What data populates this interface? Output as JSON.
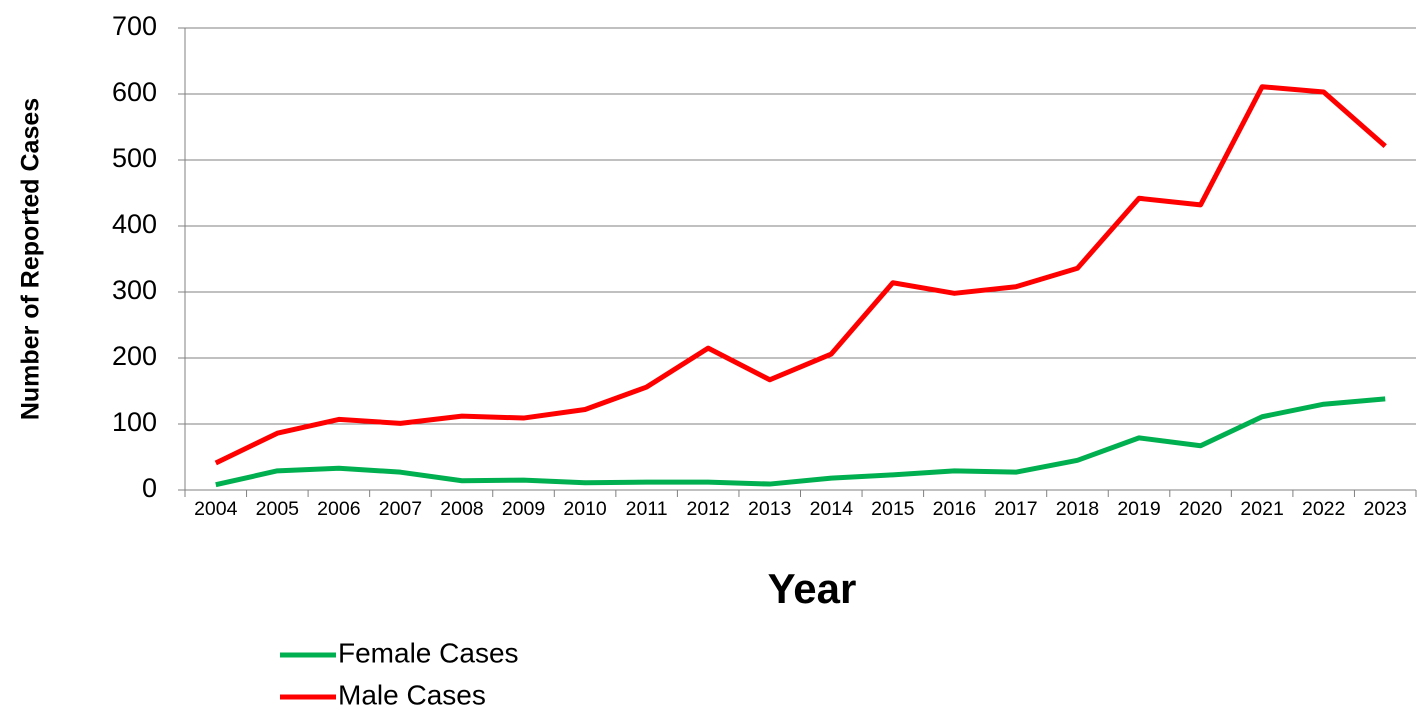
{
  "chart_data": {
    "type": "line",
    "x_label": "Year",
    "y_label": "Number of Reported Cases",
    "categories": [
      "2004",
      "2005",
      "2006",
      "2007",
      "2008",
      "2009",
      "2010",
      "2011",
      "2012",
      "2013",
      "2014",
      "2015",
      "2016",
      "2017",
      "2018",
      "2019",
      "2020",
      "2021",
      "2022",
      "2023"
    ],
    "series": [
      {
        "name": "Female Cases",
        "color": "#00b050",
        "values": [
          8,
          29,
          33,
          27,
          14,
          15,
          11,
          12,
          12,
          9,
          18,
          23,
          29,
          27,
          45,
          79,
          67,
          111,
          130,
          138
        ]
      },
      {
        "name": "Male Cases",
        "color": "#ff0000",
        "values": [
          41,
          86,
          107,
          101,
          112,
          109,
          122,
          156,
          215,
          167,
          206,
          314,
          298,
          308,
          336,
          442,
          432,
          611,
          603,
          521
        ]
      }
    ],
    "ylim": [
      0,
      700
    ],
    "yticks": [
      0,
      100,
      200,
      300,
      400,
      500,
      600,
      700
    ],
    "grid": true,
    "legend": "bottom"
  }
}
